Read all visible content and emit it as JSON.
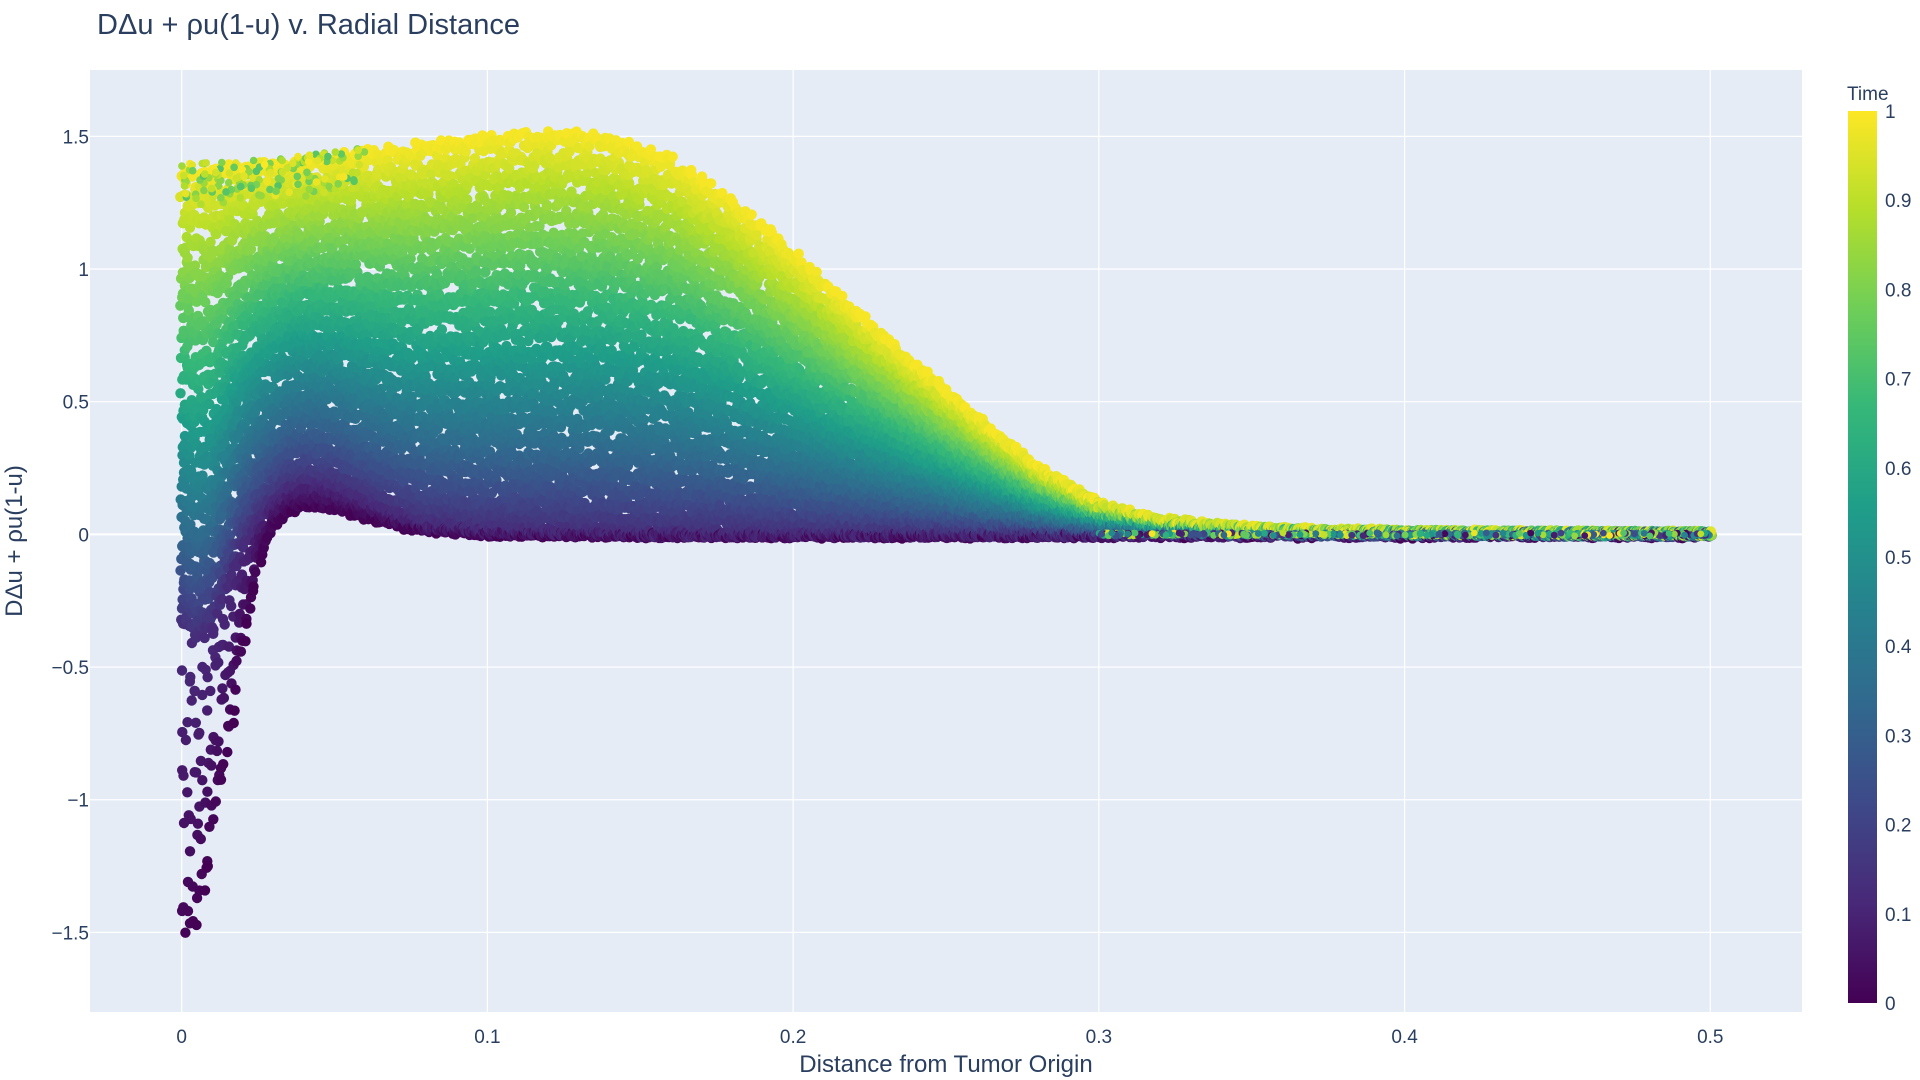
{
  "chart_data": {
    "type": "scatter",
    "title": "DΔu + ρu(1-u) v. Radial Distance",
    "xlabel": "Distance from Tumor Origin",
    "ylabel": "DΔu + ρu(1-u)",
    "xlim": [
      -0.03,
      0.53
    ],
    "ylim": [
      -1.8,
      1.75
    ],
    "x_ticks": [
      0,
      0.1,
      0.2,
      0.3,
      0.4,
      0.5
    ],
    "x_tick_labels": [
      "0",
      "0.1",
      "0.2",
      "0.3",
      "0.4",
      "0.5"
    ],
    "y_ticks": [
      1.5,
      1,
      0.5,
      0,
      -0.5,
      -1,
      -1.5
    ],
    "y_tick_labels": [
      "1.5",
      "1",
      "0.5",
      "0",
      "−0.5",
      "−1",
      "−1.5"
    ],
    "grid": true,
    "legend": "none",
    "colorbar": {
      "title": "Time",
      "range": [
        0,
        1
      ],
      "colorscale": "viridis",
      "ticks": [
        1,
        0.9,
        0.8,
        0.7,
        0.6,
        0.5,
        0.4,
        0.3,
        0.2,
        0.1,
        0
      ],
      "tick_labels": [
        "1",
        "0.9",
        "0.8",
        "0.7",
        "0.6",
        "0.5",
        "0.4",
        "0.3",
        "0.2",
        "0.1",
        "0"
      ],
      "colors": [
        "#440154",
        "#482878",
        "#3e4989",
        "#31688e",
        "#26828e",
        "#1f9e89",
        "#35b779",
        "#6ece58",
        "#b5de2b",
        "#fde725"
      ]
    },
    "series": [
      {
        "color_by": "Time",
        "envelope_upper": [
          [
            0,
            1.4
          ],
          [
            0.01,
            1.4
          ],
          [
            0.02,
            1.41
          ],
          [
            0.04,
            1.43
          ],
          [
            0.06,
            1.46
          ],
          [
            0.08,
            1.49
          ],
          [
            0.1,
            1.52
          ],
          [
            0.12,
            1.54
          ],
          [
            0.14,
            1.52
          ],
          [
            0.16,
            1.44
          ],
          [
            0.18,
            1.28
          ],
          [
            0.2,
            1.08
          ],
          [
            0.22,
            0.86
          ],
          [
            0.24,
            0.65
          ],
          [
            0.26,
            0.45
          ],
          [
            0.28,
            0.26
          ],
          [
            0.3,
            0.12
          ],
          [
            0.32,
            0.06
          ],
          [
            0.34,
            0.035
          ],
          [
            0.36,
            0.02
          ],
          [
            0.4,
            0.01
          ],
          [
            0.45,
            0.006
          ],
          [
            0.5,
            0.004
          ]
        ],
        "envelope_lower": [
          [
            0,
            -1.63
          ],
          [
            0.005,
            -1.5
          ],
          [
            0.01,
            -1.2
          ],
          [
            0.015,
            -0.85
          ],
          [
            0.02,
            -0.45
          ],
          [
            0.025,
            -0.12
          ],
          [
            0.03,
            0.02
          ],
          [
            0.035,
            0.08
          ],
          [
            0.04,
            0.1
          ],
          [
            0.05,
            0.09
          ],
          [
            0.06,
            0.06
          ],
          [
            0.07,
            0.03
          ],
          [
            0.08,
            0.01
          ],
          [
            0.1,
            0.0
          ],
          [
            0.15,
            -0.005
          ],
          [
            0.2,
            -0.006
          ],
          [
            0.3,
            -0.006
          ],
          [
            0.4,
            -0.006
          ],
          [
            0.5,
            -0.006
          ]
        ],
        "early_time_curve": [
          [
            0,
            -0.35
          ],
          [
            0.005,
            -0.4
          ],
          [
            0.01,
            -0.35
          ],
          [
            0.015,
            -0.2
          ],
          [
            0.02,
            -0.05
          ],
          [
            0.025,
            0.05
          ],
          [
            0.03,
            0.12
          ],
          [
            0.035,
            0.17
          ],
          [
            0.04,
            0.19
          ],
          [
            0.045,
            0.19
          ],
          [
            0.05,
            0.18
          ],
          [
            0.06,
            0.13
          ],
          [
            0.07,
            0.08
          ],
          [
            0.08,
            0.04
          ],
          [
            0.1,
            0.015
          ],
          [
            0.15,
            0.0
          ]
        ],
        "x_range": [
          0,
          0.5
        ]
      }
    ]
  }
}
